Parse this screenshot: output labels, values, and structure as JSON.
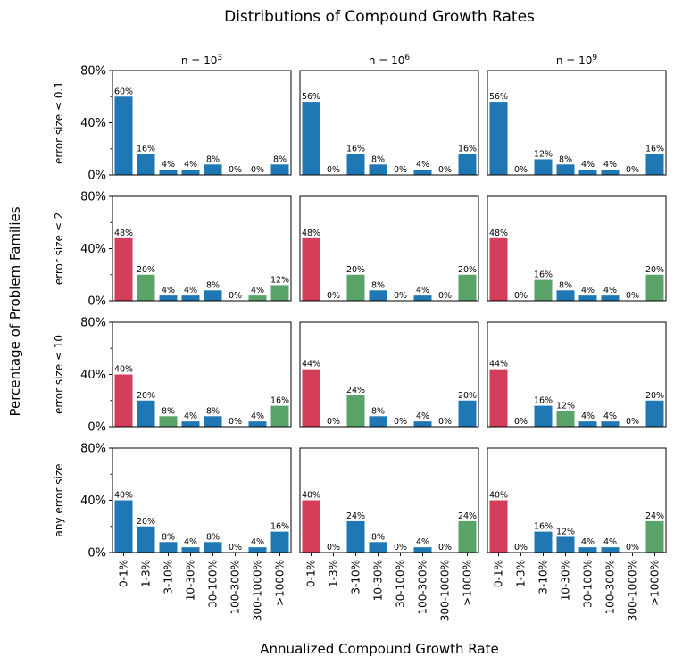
{
  "title": "Distributions of Compound Growth Rates",
  "xlabel": "Annualized Compound Growth Rate",
  "ylabel": "Percentage of Problem Families",
  "colors": {
    "blue": "#1f77b4",
    "red": "#d43d5a",
    "green": "#5aa469"
  },
  "chart_data": {
    "type": "bar",
    "categories": [
      "0-1%",
      "1-3%",
      "3-10%",
      "10-30%",
      "30-100%",
      "100-300%",
      "300-1000%",
      ">1000%"
    ],
    "ylim": [
      0,
      80
    ],
    "yticks": [
      "0%",
      "40%",
      "80%"
    ],
    "columns": [
      {
        "base": "n = 10",
        "exp": "3"
      },
      {
        "base": "n = 10",
        "exp": "6"
      },
      {
        "base": "n = 10",
        "exp": "9"
      }
    ],
    "rows": [
      "error size ≤ 0.1",
      "error size ≤ 2",
      "error size ≤ 10",
      "any error size"
    ],
    "panels": [
      [
        {
          "values": [
            60,
            16,
            4,
            4,
            8,
            0,
            0,
            8
          ],
          "colors": [
            "blue",
            "blue",
            "blue",
            "blue",
            "blue",
            "blue",
            "blue",
            "blue"
          ]
        },
        {
          "values": [
            56,
            0,
            16,
            8,
            0,
            4,
            0,
            16
          ],
          "colors": [
            "blue",
            "blue",
            "blue",
            "blue",
            "blue",
            "blue",
            "blue",
            "blue"
          ]
        },
        {
          "values": [
            56,
            0,
            12,
            8,
            4,
            4,
            0,
            16
          ],
          "colors": [
            "blue",
            "blue",
            "blue",
            "blue",
            "blue",
            "blue",
            "blue",
            "blue"
          ]
        }
      ],
      [
        {
          "values": [
            48,
            20,
            4,
            4,
            8,
            0,
            4,
            12
          ],
          "colors": [
            "red",
            "green",
            "blue",
            "blue",
            "blue",
            "blue",
            "green",
            "green"
          ]
        },
        {
          "values": [
            48,
            0,
            20,
            8,
            0,
            4,
            0,
            20
          ],
          "colors": [
            "red",
            "blue",
            "green",
            "blue",
            "blue",
            "blue",
            "blue",
            "green"
          ]
        },
        {
          "values": [
            48,
            0,
            16,
            8,
            4,
            4,
            0,
            20
          ],
          "colors": [
            "red",
            "blue",
            "green",
            "blue",
            "blue",
            "blue",
            "blue",
            "green"
          ]
        }
      ],
      [
        {
          "values": [
            40,
            20,
            8,
            4,
            8,
            0,
            4,
            16
          ],
          "colors": [
            "red",
            "blue",
            "green",
            "blue",
            "blue",
            "blue",
            "blue",
            "green"
          ]
        },
        {
          "values": [
            44,
            0,
            24,
            8,
            0,
            4,
            0,
            20
          ],
          "colors": [
            "red",
            "blue",
            "green",
            "blue",
            "blue",
            "blue",
            "blue",
            "blue"
          ]
        },
        {
          "values": [
            44,
            0,
            16,
            12,
            4,
            4,
            0,
            20
          ],
          "colors": [
            "red",
            "blue",
            "blue",
            "green",
            "blue",
            "blue",
            "blue",
            "blue"
          ]
        }
      ],
      [
        {
          "values": [
            40,
            20,
            8,
            4,
            8,
            0,
            4,
            16
          ],
          "colors": [
            "blue",
            "blue",
            "blue",
            "blue",
            "blue",
            "blue",
            "blue",
            "blue"
          ]
        },
        {
          "values": [
            40,
            0,
            24,
            8,
            0,
            4,
            0,
            24
          ],
          "colors": [
            "red",
            "blue",
            "blue",
            "blue",
            "blue",
            "blue",
            "blue",
            "green"
          ]
        },
        {
          "values": [
            40,
            0,
            16,
            12,
            4,
            4,
            0,
            24
          ],
          "colors": [
            "red",
            "blue",
            "blue",
            "blue",
            "blue",
            "blue",
            "blue",
            "green"
          ]
        }
      ]
    ]
  }
}
